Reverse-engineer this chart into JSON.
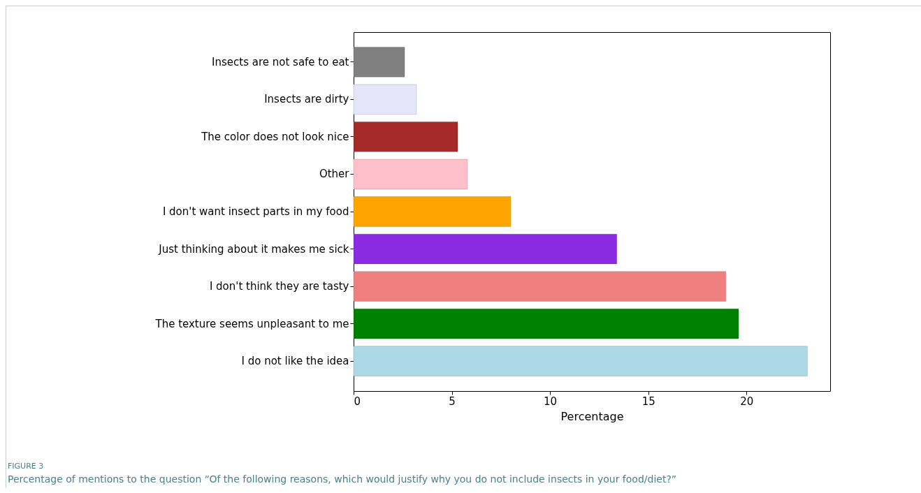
{
  "chart_data": {
    "type": "bar",
    "orientation": "horizontal",
    "xlabel": "Percentage",
    "categories": [
      "Insects are not safe to eat",
      "Insects are dirty",
      "The color does not look nice",
      "Other",
      "I don't want insect parts in my food",
      "Just thinking about it makes me sick",
      "I don't think they are tasty",
      "The texture seems unpleasant to me",
      "I do not like the idea"
    ],
    "values": [
      2.6,
      3.2,
      5.3,
      5.8,
      8.0,
      13.4,
      18.95,
      19.6,
      23.1
    ],
    "colors": [
      "#808080",
      "#e6e6fa",
      "#a52a2a",
      "#ffc0cb",
      "#ffa500",
      "#8a2be2",
      "#f08080",
      "#008000",
      "#add8e6"
    ],
    "xlim": [
      0,
      24.26
    ],
    "xticks": [
      0,
      5,
      10,
      15,
      20
    ],
    "grid": false,
    "annotations": [
      "FIGURE 3",
      "Percentage of mentions to the question “Of the following reasons, which would justify why you do not include insects in your food/diet?”"
    ]
  }
}
